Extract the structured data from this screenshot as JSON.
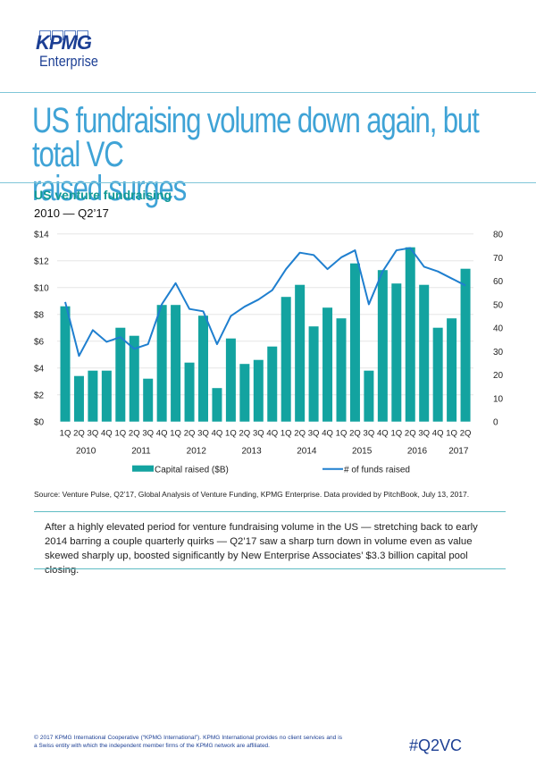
{
  "brand": {
    "logo_word": "KPMG",
    "logo_sub": "Enterprise",
    "colors": {
      "brand_blue": "#1c3f94",
      "title_blue": "#3fa3d6",
      "teal": "#119a95",
      "bar_teal": "#13a3a0",
      "line_blue": "#1f7fcf",
      "rule": "#7fc6d8"
    }
  },
  "header": {
    "title_line1": "US fundraising volume down again, but total VC",
    "title_line2": "raised surges"
  },
  "section": {
    "subtitle": "US venture fundraising",
    "daterange": "2010 — Q2’17"
  },
  "chart_data": {
    "type": "bar+line",
    "title": "US venture fundraising",
    "subtitle": "2010 — Q2'17",
    "categories": [
      "1Q",
      "2Q",
      "3Q",
      "4Q",
      "1Q",
      "2Q",
      "3Q",
      "4Q",
      "1Q",
      "2Q",
      "3Q",
      "4Q",
      "1Q",
      "2Q",
      "3Q",
      "4Q",
      "1Q",
      "2Q",
      "3Q",
      "4Q",
      "1Q",
      "2Q",
      "3Q",
      "4Q",
      "1Q",
      "2Q",
      "3Q",
      "4Q",
      "1Q",
      "2Q"
    ],
    "year_labels": [
      {
        "label": "2010",
        "start": 0,
        "end": 3
      },
      {
        "label": "2011",
        "start": 4,
        "end": 7
      },
      {
        "label": "2012",
        "start": 8,
        "end": 11
      },
      {
        "label": "2013",
        "start": 12,
        "end": 15
      },
      {
        "label": "2014",
        "start": 16,
        "end": 19
      },
      {
        "label": "2015",
        "start": 20,
        "end": 23
      },
      {
        "label": "2016",
        "start": 24,
        "end": 27
      },
      {
        "label": "2017",
        "start": 28,
        "end": 29
      }
    ],
    "series": [
      {
        "name": "Capital raised ($B)",
        "type": "bar",
        "axis": "left",
        "color": "#13a3a0",
        "values": [
          8.6,
          3.4,
          3.8,
          3.8,
          7.0,
          6.4,
          3.2,
          8.7,
          8.7,
          4.4,
          7.9,
          2.5,
          6.2,
          4.3,
          4.6,
          5.6,
          9.3,
          10.2,
          7.1,
          8.5,
          7.7,
          11.8,
          3.8,
          11.3,
          10.3,
          13.0,
          10.2,
          7.0,
          7.7,
          11.4
        ]
      },
      {
        "name": "# of funds raised",
        "type": "line",
        "axis": "right",
        "color": "#1f7fcf",
        "values": [
          51,
          28,
          39,
          34,
          36,
          31,
          33,
          50,
          59,
          48,
          47,
          33,
          45,
          49,
          52,
          56,
          65,
          72,
          71,
          65,
          70,
          73,
          50,
          64,
          73,
          74,
          66,
          64,
          61,
          58
        ]
      }
    ],
    "left_axis": {
      "ylim": [
        0,
        14
      ],
      "ticks": [
        0,
        2,
        4,
        6,
        8,
        10,
        12,
        14
      ],
      "tick_labels": [
        "$0",
        "$2",
        "$4",
        "$6",
        "$8",
        "$10",
        "$12",
        "$14"
      ]
    },
    "right_axis": {
      "ylim": [
        0,
        80
      ],
      "ticks": [
        0,
        10,
        20,
        30,
        40,
        50,
        60,
        70,
        80
      ],
      "tick_labels": [
        "0",
        "10",
        "20",
        "30",
        "40",
        "50",
        "60",
        "70",
        "80"
      ]
    },
    "grid": true,
    "legend": {
      "placement": "bottom",
      "entries": [
        "Capital raised ($B)",
        "# of funds raised"
      ]
    }
  },
  "source": "Source: Venture Pulse, Q2’17, Global Analysis of Venture Funding, KPMG Enterprise. Data provided by PitchBook, July 13, 2017.",
  "commentary": "After a highly elevated period for venture fundraising volume in the US — stretching back to early 2014 barring a couple quarterly quirks — Q2’17 saw a sharp turn down in volume even as value skewed sharply up, boosted significantly by New Enterprise Associates’ $3.3 billion capital pool closing.",
  "footer": {
    "legal": "© 2017 KPMG International Cooperative (“KPMG International”). KPMG International provides no client services and is a Swiss entity with which the independent member firms of the KPMG network are affiliated.",
    "hashtag": "#Q2VC"
  }
}
